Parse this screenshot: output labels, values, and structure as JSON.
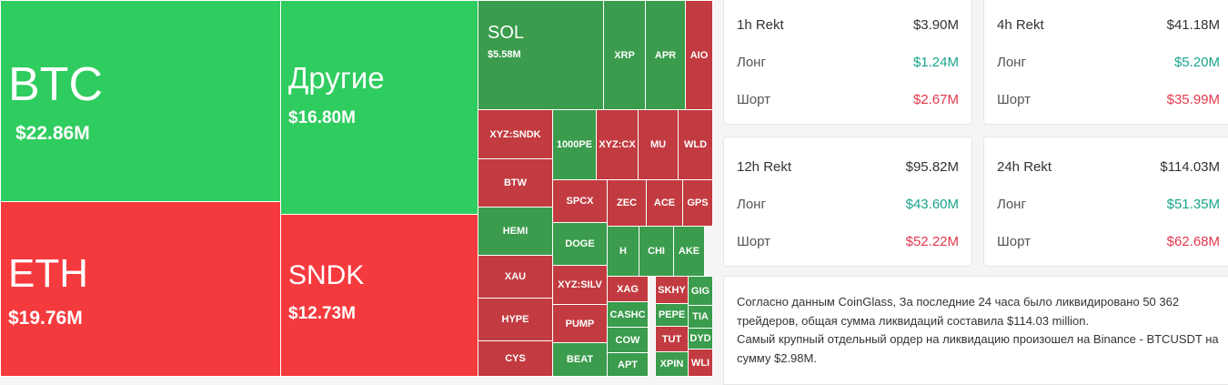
{
  "treemap": {
    "tiles": [
      {
        "label": "BTC",
        "value": "$22.86M"
      },
      {
        "label": "ETH",
        "value": "$19.76M"
      },
      {
        "label": "Другие",
        "value": "$16.80M"
      },
      {
        "label": "SNDK",
        "value": "$12.73M"
      },
      {
        "label": "SOL",
        "value": "$5.58M"
      },
      {
        "label": "XRP"
      },
      {
        "label": "APR"
      },
      {
        "label": "AIO"
      },
      {
        "label": "XYZ:SNDK"
      },
      {
        "label": "BTW"
      },
      {
        "label": "HEMI"
      },
      {
        "label": "XAU"
      },
      {
        "label": "HYPE"
      },
      {
        "label": "CYS"
      },
      {
        "label": "1000PE"
      },
      {
        "label": "XYZ:CX"
      },
      {
        "label": "MU"
      },
      {
        "label": "WLD"
      },
      {
        "label": "SPCX"
      },
      {
        "label": "ZEC"
      },
      {
        "label": "ACE"
      },
      {
        "label": "GPS"
      },
      {
        "label": "DOGE"
      },
      {
        "label": "H"
      },
      {
        "label": "CHI"
      },
      {
        "label": "AKE"
      },
      {
        "label": "XYZ:SILV"
      },
      {
        "label": "PUMP"
      },
      {
        "label": "BEAT"
      },
      {
        "label": "XAG"
      },
      {
        "label": "SKHY"
      },
      {
        "label": "GIG"
      },
      {
        "label": "CASHC"
      },
      {
        "label": "PEPE"
      },
      {
        "label": "TIA"
      },
      {
        "label": "COW"
      },
      {
        "label": "TUT"
      },
      {
        "label": "DYD"
      },
      {
        "label": "APT"
      },
      {
        "label": "XPIN"
      },
      {
        "label": "WLI"
      }
    ]
  },
  "cards": [
    {
      "title": "1h Rekt",
      "total": "$3.90M",
      "rows": [
        {
          "label": "Лонг",
          "value": "$1.24M"
        },
        {
          "label": "Шорт",
          "value": "$2.67M"
        }
      ]
    },
    {
      "title": "4h Rekt",
      "total": "$41.18M",
      "rows": [
        {
          "label": "Лонг",
          "value": "$5.20M"
        },
        {
          "label": "Шорт",
          "value": "$35.99M"
        }
      ]
    },
    {
      "title": "12h Rekt",
      "total": "$95.82M",
      "rows": [
        {
          "label": "Лонг",
          "value": "$43.60M"
        },
        {
          "label": "Шорт",
          "value": "$52.22M"
        }
      ]
    },
    {
      "title": "24h Rekt",
      "total": "$114.03M",
      "rows": [
        {
          "label": "Лонг",
          "value": "$51.35M"
        },
        {
          "label": "Шорт",
          "value": "$62.68M"
        }
      ]
    }
  ],
  "summary": [
    "Согласно данным CoinGlass, За последние 24 часа было ликвидировано 50 362 трейдеров, общая сумма ликвидаций составила $114.03 million.",
    "Самый крупный отдельный ордер на ликвидацию произошел на Binance - BTCUSDT на сумму $2.98M."
  ]
}
